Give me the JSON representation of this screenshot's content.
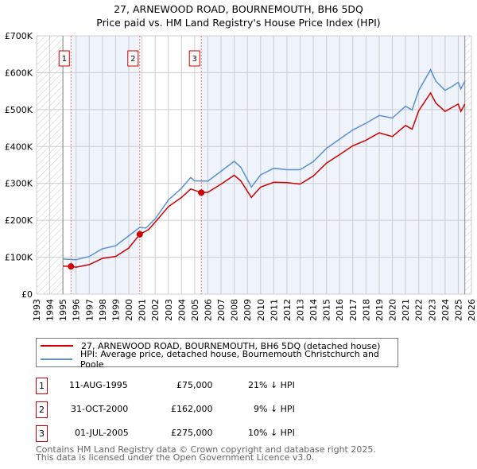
{
  "title": "27, ARNEWOOD ROAD, BOURNEMOUTH, BH6 5DQ",
  "subtitle": "Price paid vs. HM Land Registry's House Price Index (HPI)",
  "chart_data": {
    "type": "line",
    "title": "27, ARNEWOOD ROAD, BOURNEMOUTH, BH6 5DQ",
    "subtitle": "Price paid vs. HM Land Registry's House Price Index (HPI)",
    "xlim": [
      1993,
      2026
    ],
    "ylim": [
      0,
      700000
    ],
    "x_ticks": [
      "1993",
      "1994",
      "1995",
      "1996",
      "1997",
      "1998",
      "1999",
      "2000",
      "2001",
      "2002",
      "2003",
      "2004",
      "2005",
      "2006",
      "2007",
      "2008",
      "2009",
      "2010",
      "2011",
      "2012",
      "2013",
      "2014",
      "2015",
      "2016",
      "2017",
      "2018",
      "2019",
      "2020",
      "2021",
      "2022",
      "2023",
      "2024",
      "2025",
      "2026"
    ],
    "y_ticks": [
      {
        "v": 0,
        "label": "£0"
      },
      {
        "v": 100000,
        "label": "£100K"
      },
      {
        "v": 200000,
        "label": "£200K"
      },
      {
        "v": 300000,
        "label": "£300K"
      },
      {
        "v": 400000,
        "label": "£400K"
      },
      {
        "v": 500000,
        "label": "£500K"
      },
      {
        "v": 600000,
        "label": "£600K"
      },
      {
        "v": 700000,
        "label": "£700K"
      }
    ],
    "grid": true,
    "series": [
      {
        "name": "27, ARNEWOOD ROAD, BOURNEMOUTH, BH6 5DQ (detached house)",
        "color": "#cc0000",
        "x": [
          1995,
          1995.6,
          1996,
          1997,
          1998,
          1999,
          2000,
          2000.83,
          2001.5,
          2002,
          2003,
          2004,
          2004.7,
          2005.5,
          2006,
          2007,
          2008,
          2008.5,
          2009.3,
          2010,
          2011,
          2012,
          2013,
          2014,
          2015,
          2016,
          2017,
          2018,
          2019,
          2020,
          2021,
          2021.5,
          2022,
          2022.9,
          2023.3,
          2024,
          2024.5,
          2025,
          2025.2,
          2025.5
        ],
        "y": [
          76000,
          75000,
          73000,
          80000,
          97000,
          102000,
          125000,
          162000,
          175000,
          195000,
          237000,
          262000,
          285000,
          275000,
          276000,
          298000,
          322000,
          307000,
          262000,
          290000,
          303000,
          302000,
          298000,
          320000,
          355000,
          378000,
          402000,
          417000,
          437000,
          427000,
          457000,
          447000,
          497000,
          545000,
          518000,
          495000,
          505000,
          515000,
          495000,
          515000
        ]
      },
      {
        "name": "HPI: Average price, detached house, Bournemouth Christchurch and Poole",
        "color": "#5b8fd0",
        "x": [
          1995,
          1996,
          1997,
          1998,
          1999,
          2000,
          2000.83,
          2001.3,
          2002,
          2003,
          2004,
          2004.7,
          2005,
          2006,
          2007,
          2008,
          2008.5,
          2009.3,
          2010,
          2011,
          2012,
          2013,
          2014,
          2015,
          2016,
          2017,
          2018,
          2019,
          2020,
          2021,
          2021.5,
          2022,
          2022.9,
          2023.3,
          2024,
          2024.5,
          2025,
          2025.2,
          2025.5
        ],
        "y": [
          95000,
          93000,
          102000,
          123000,
          131000,
          158000,
          181000,
          179000,
          204000,
          255000,
          287000,
          316000,
          307000,
          306000,
          333000,
          360000,
          344000,
          290000,
          323000,
          341000,
          337000,
          337000,
          359000,
          395000,
          420000,
          445000,
          463000,
          484000,
          477000,
          509000,
          499000,
          552000,
          608000,
          577000,
          552000,
          562000,
          574000,
          556000,
          577000
        ]
      }
    ],
    "sales": [
      {
        "label": "1",
        "x": 1995.61,
        "y": 75000
      },
      {
        "label": "2",
        "x": 2000.83,
        "y": 162000
      },
      {
        "label": "3",
        "x": 2005.5,
        "y": 275000
      }
    ],
    "legend_placement": "below"
  },
  "legend": [
    {
      "label": "27, ARNEWOOD ROAD, BOURNEMOUTH, BH6 5DQ (detached house)",
      "color": "#cc0000"
    },
    {
      "label": "HPI: Average price, detached house, Bournemouth Christchurch and Poole",
      "color": "#5b8fd0"
    }
  ],
  "transactions": [
    {
      "num": "1",
      "date": "11-AUG-1995",
      "price": "£75,000",
      "hpi": "21% ↓ HPI"
    },
    {
      "num": "2",
      "date": "31-OCT-2000",
      "price": "£162,000",
      "hpi": "9% ↓ HPI"
    },
    {
      "num": "3",
      "date": "01-JUL-2005",
      "price": "£275,000",
      "hpi": "10% ↓ HPI"
    }
  ],
  "footer": [
    "Contains HM Land Registry data © Crown copyright and database right 2025.",
    "This data is licensed under the Open Government Licence v3.0."
  ]
}
